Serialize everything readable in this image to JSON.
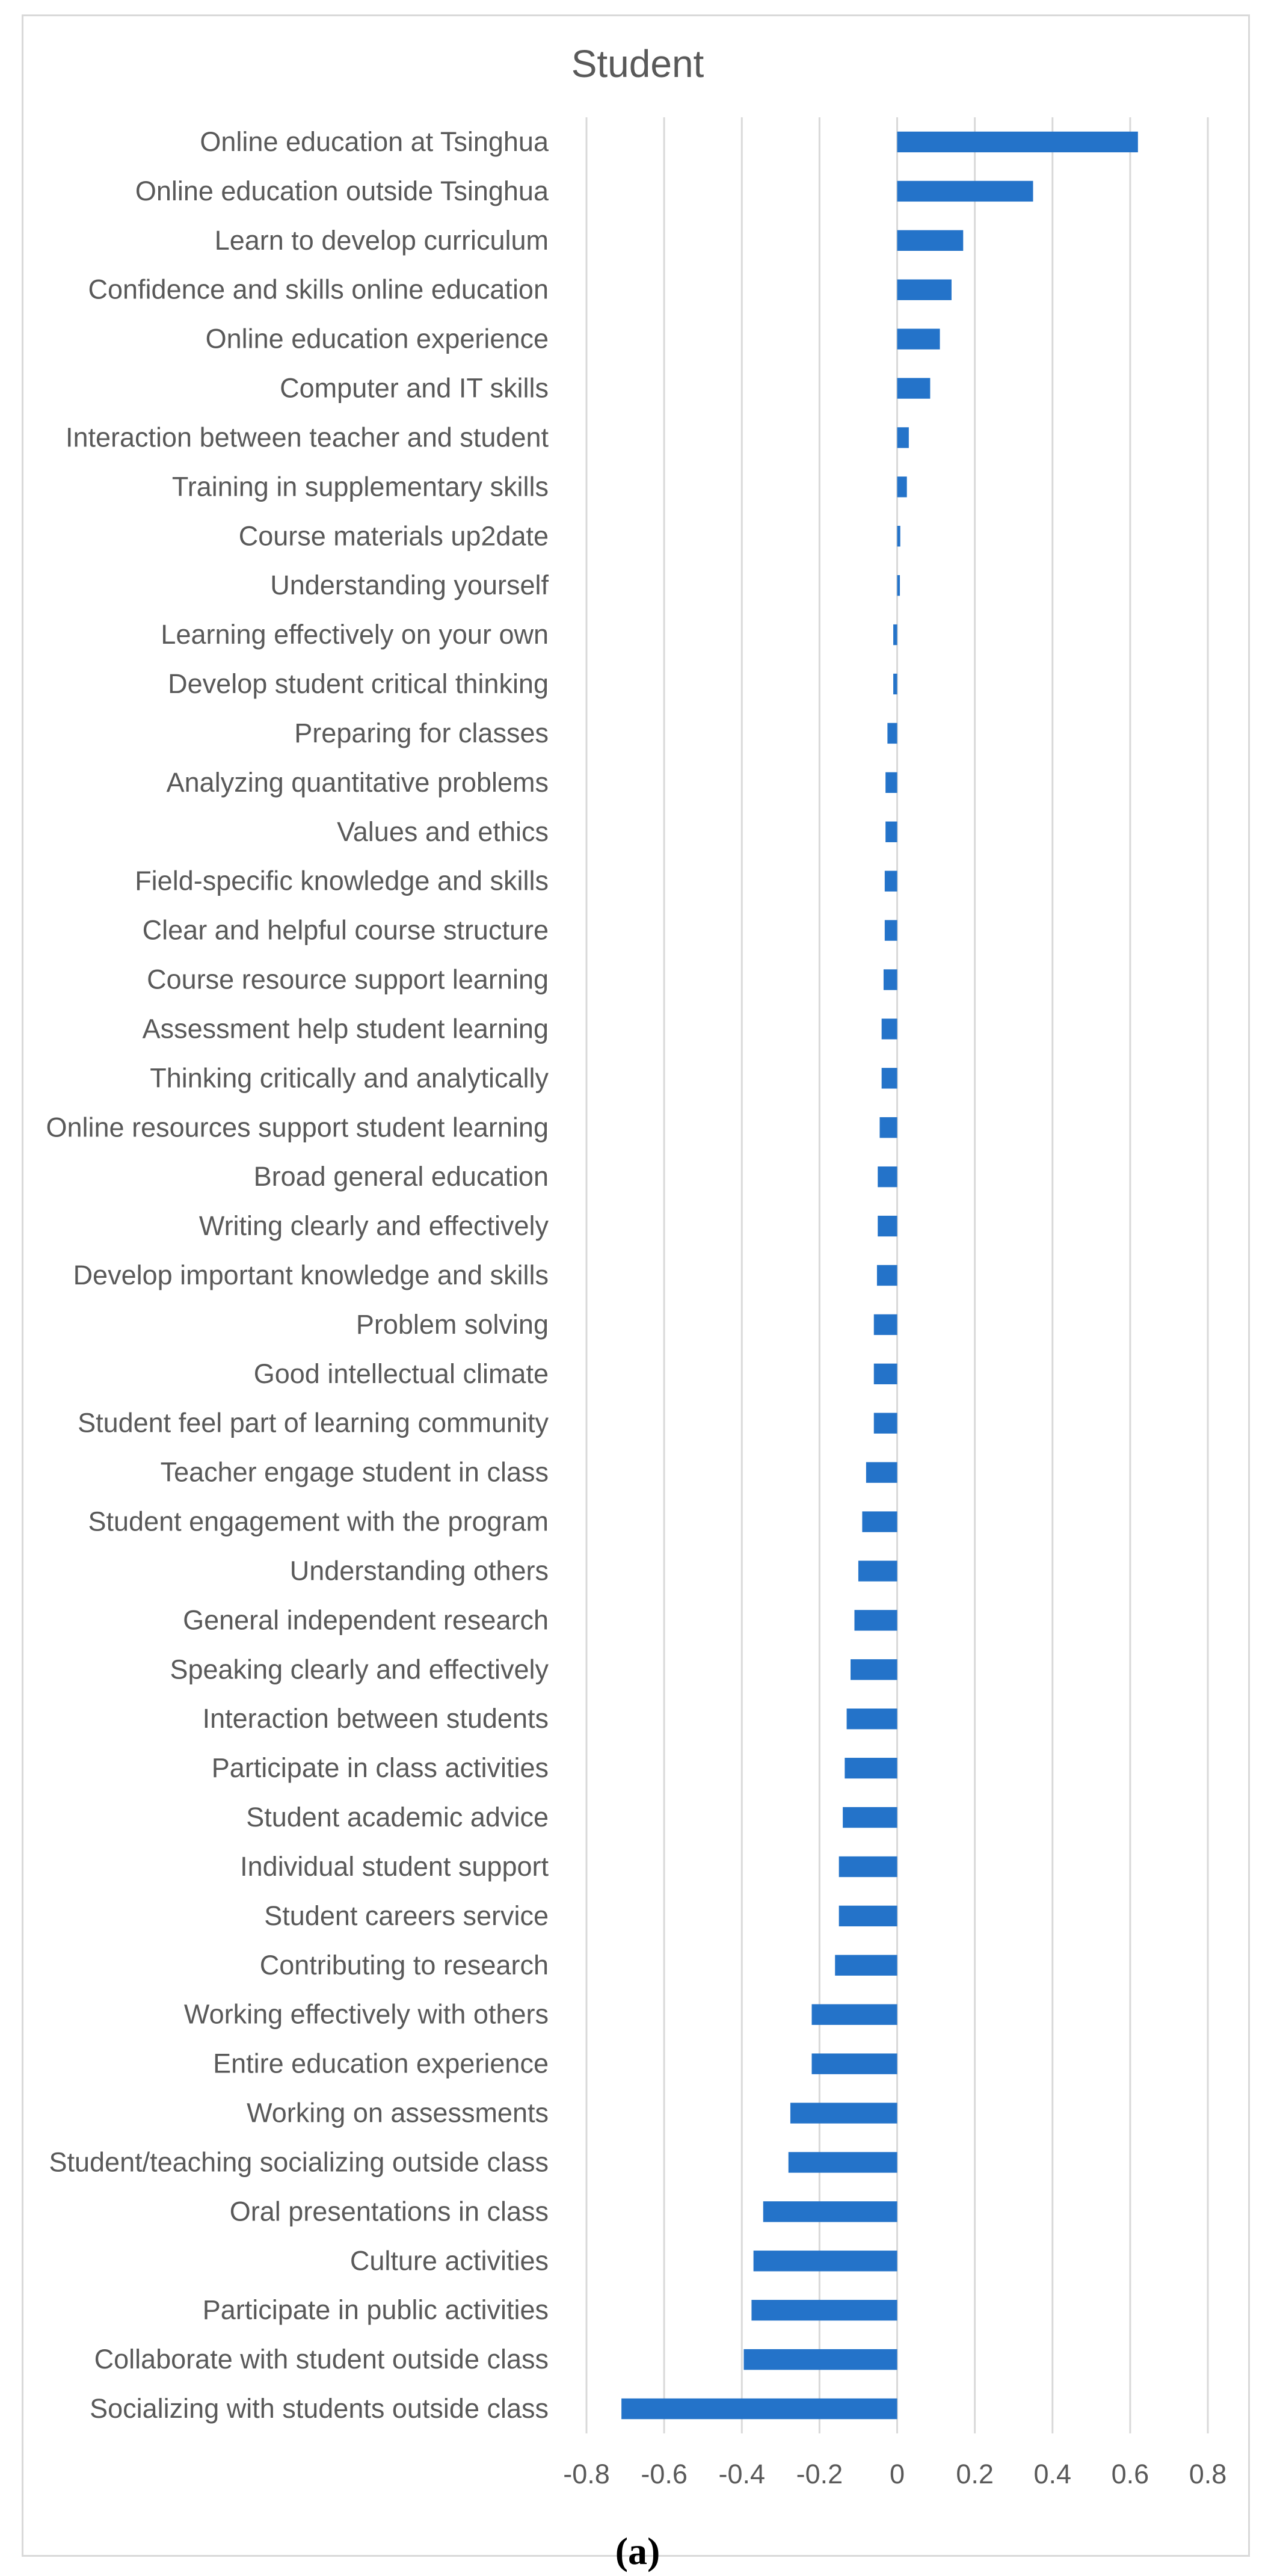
{
  "chart_data": {
    "type": "bar",
    "orientation": "horizontal",
    "title": "Student",
    "caption": "(a)",
    "bar_color": "#2473c9",
    "grid_color": "#d9d9d9",
    "grid": true,
    "xlim": [
      -0.8,
      0.8
    ],
    "x_ticks": [
      -0.8,
      -0.6,
      -0.4,
      -0.2,
      0,
      0.2,
      0.4,
      0.6,
      0.8
    ],
    "x_tick_labels": [
      "-0.8",
      "-0.6",
      "-0.4",
      "-0.2",
      "0",
      "0.2",
      "0.4",
      "0.6",
      "0.8"
    ],
    "categories": [
      "Online education at Tsinghua",
      "Online education outside Tsinghua",
      "Learn to develop curriculum",
      "Confidence and skills online education",
      "Online education experience",
      "Computer and IT skills",
      "Interaction between teacher and student",
      "Training in supplementary skills",
      "Course materials up2date",
      "Understanding yourself",
      "Learning effectively on your own",
      "Develop student critical thinking",
      "Preparing for classes",
      "Analyzing quantitative problems",
      "Values and ethics",
      "Field-specific knowledge and skills",
      "Clear and helpful course structure",
      "Course resource support learning",
      "Assessment help student learning",
      "Thinking critically and analytically",
      "Online resources support student learning",
      "Broad general education",
      "Writing clearly and effectively",
      "Develop important knowledge and skills",
      "Problem solving",
      "Good intellectual climate",
      "Student feel part of learning community",
      "Teacher engage student in class",
      "Student engagement with the program",
      "Understanding others",
      "General independent research",
      "Speaking clearly and effectively",
      "Interaction between students",
      "Participate in class activities",
      "Student academic advice",
      "Individual student support",
      "Student careers service",
      "Contributing to research",
      "Working effectively with others",
      "Entire education experience",
      "Working on assessments",
      "Student/teaching socializing outside class",
      "Oral presentations in class",
      "Culture activities",
      "Participate in public activities",
      "Collaborate with student outside class",
      "Socializing with students outside class"
    ],
    "values": [
      0.62,
      0.35,
      0.17,
      0.14,
      0.11,
      0.085,
      0.03,
      0.025,
      0.008,
      0.007,
      -0.01,
      -0.01,
      -0.025,
      -0.03,
      -0.03,
      -0.032,
      -0.032,
      -0.035,
      -0.04,
      -0.04,
      -0.045,
      -0.05,
      -0.05,
      -0.052,
      -0.06,
      -0.06,
      -0.06,
      -0.08,
      -0.09,
      -0.1,
      -0.11,
      -0.12,
      -0.13,
      -0.135,
      -0.14,
      -0.15,
      -0.15,
      -0.16,
      -0.22,
      -0.22,
      -0.275,
      -0.28,
      -0.345,
      -0.37,
      -0.375,
      -0.395,
      -0.71
    ]
  }
}
